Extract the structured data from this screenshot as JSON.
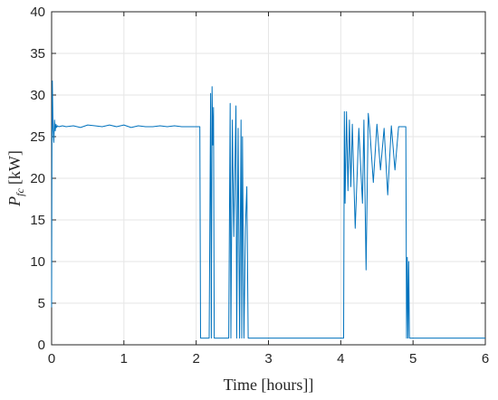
{
  "chart_data": {
    "type": "line",
    "xlabel": "Time [hours]]",
    "ylabel_main": "P",
    "ylabel_sub": "fc",
    "ylabel_unit": "[kW]",
    "xlim": [
      0,
      6
    ],
    "ylim": [
      0,
      40
    ],
    "x_ticks": [
      0,
      1,
      2,
      3,
      4,
      5,
      6
    ],
    "y_ticks": [
      0,
      5,
      10,
      15,
      20,
      25,
      30,
      35,
      40
    ],
    "x_tick_labels": [
      "0",
      "1",
      "2",
      "3",
      "4",
      "5",
      "6"
    ],
    "y_tick_labels": [
      "0",
      "5",
      "10",
      "15",
      "20",
      "25",
      "30",
      "35",
      "40"
    ],
    "grid": true,
    "line_color": "#0072bd",
    "series": [
      {
        "x": [
          0,
          0.005,
          0.01,
          0.02,
          0.03,
          0.04,
          0.05,
          0.06,
          0.07,
          0.08,
          0.1,
          0.15,
          0.2,
          0.3,
          0.4,
          0.5,
          0.6,
          0.7,
          0.8,
          0.9,
          1.0,
          1.1,
          1.2,
          1.3,
          1.4,
          1.5,
          1.6,
          1.7,
          1.8,
          1.9,
          2.0,
          2.05,
          2.06,
          2.07,
          2.15,
          2.18,
          2.2,
          2.21,
          2.22,
          2.23,
          2.24,
          2.25,
          2.26,
          2.27,
          2.4,
          2.45,
          2.47,
          2.48,
          2.5,
          2.52,
          2.55,
          2.56,
          2.58,
          2.6,
          2.62,
          2.63,
          2.64,
          2.66,
          2.68,
          2.7,
          2.72,
          2.75,
          3.0,
          3.5,
          4.0,
          4.04,
          4.05,
          4.06,
          4.08,
          4.1,
          4.12,
          4.14,
          4.16,
          4.2,
          4.25,
          4.3,
          4.32,
          4.35,
          4.38,
          4.4,
          4.45,
          4.5,
          4.55,
          4.6,
          4.65,
          4.7,
          4.75,
          4.8,
          4.85,
          4.9,
          4.91,
          4.92,
          4.93,
          4.94,
          4.95,
          5.0,
          5.5,
          6.0
        ],
        "y": [
          4.5,
          25.0,
          31.7,
          26.0,
          24.3,
          27.0,
          25.7,
          26.5,
          26.1,
          26.3,
          26.2,
          26.3,
          26.2,
          26.3,
          26.1,
          26.4,
          26.3,
          26.2,
          26.4,
          26.2,
          26.4,
          26.1,
          26.3,
          26.2,
          26.2,
          26.3,
          26.2,
          26.3,
          26.2,
          26.2,
          26.2,
          26.2,
          0.8,
          0.8,
          0.8,
          0.8,
          30.2,
          0.8,
          31.0,
          24.0,
          28.5,
          0.8,
          0.8,
          0.8,
          0.8,
          0.8,
          29.0,
          0.8,
          27.0,
          13.0,
          28.7,
          0.8,
          26.0,
          0.8,
          27.0,
          0.8,
          25.0,
          0.8,
          14.0,
          19.0,
          0.8,
          0.8,
          0.8,
          0.8,
          0.8,
          0.8,
          28.0,
          17.0,
          28.0,
          18.5,
          27.0,
          19.0,
          26.5,
          14.0,
          26.0,
          17.0,
          27.0,
          9.0,
          27.8,
          26.0,
          19.5,
          26.5,
          21.0,
          26.0,
          18.0,
          26.3,
          21.0,
          26.2,
          26.2,
          26.2,
          0.8,
          10.5,
          0.8,
          10.0,
          0.8,
          0.8,
          0.8,
          0.8
        ]
      }
    ]
  }
}
